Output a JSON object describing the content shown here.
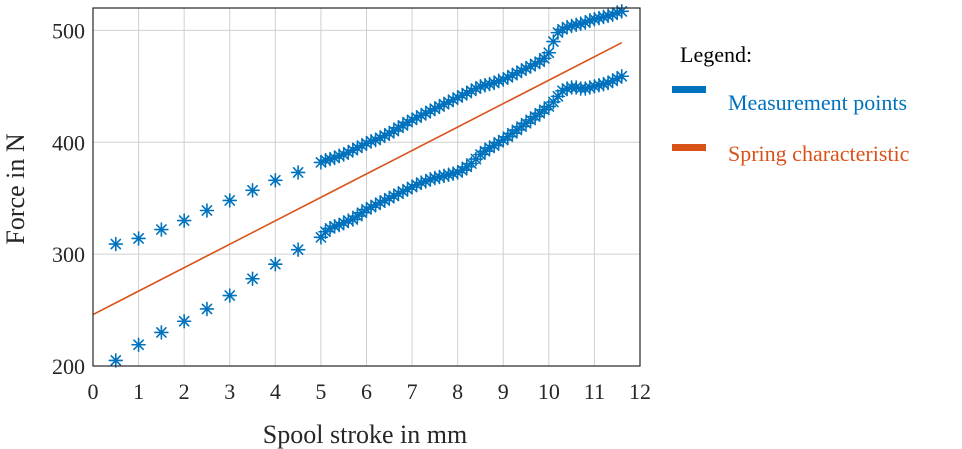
{
  "chart_data": {
    "type": "scatter",
    "xlabel": "Spool stroke in mm",
    "ylabel": "Force in N",
    "xlim": [
      0,
      12
    ],
    "ylim": [
      200,
      520
    ],
    "xticks": [
      0,
      1,
      2,
      3,
      4,
      5,
      6,
      7,
      8,
      9,
      10,
      11,
      12
    ],
    "yticks": [
      200,
      300,
      400,
      500
    ],
    "grid": true,
    "legend": {
      "title": "Legend:",
      "placement": "right-outside",
      "entries": [
        {
          "label": "Measurement points",
          "color": "#0072BD"
        },
        {
          "label": "Spring characteristic",
          "color": "#D95319"
        }
      ]
    },
    "series": [
      {
        "kind": "points",
        "color": "#0072BD",
        "marker": "asterisk",
        "upper_x": [
          0.5,
          1.0,
          1.5,
          2.0,
          2.5,
          3.0,
          3.5,
          4.0,
          4.5,
          5.0,
          5.1,
          5.2,
          5.3,
          5.4,
          5.5,
          5.6,
          5.7,
          5.8,
          5.9,
          6.0,
          6.1,
          6.2,
          6.3,
          6.4,
          6.5,
          6.6,
          6.7,
          6.8,
          6.9,
          7.0,
          7.1,
          7.2,
          7.3,
          7.4,
          7.5,
          7.6,
          7.7,
          7.8,
          7.9,
          8.0,
          8.1,
          8.2,
          8.3,
          8.4,
          8.5,
          8.6,
          8.7,
          8.8,
          8.9,
          9.0,
          9.1,
          9.2,
          9.3,
          9.4,
          9.5,
          9.6,
          9.7,
          9.8,
          9.9,
          10.0,
          10.1,
          10.2,
          10.3,
          10.4,
          10.5,
          10.6,
          10.7,
          10.8,
          10.9,
          11.0,
          11.1,
          11.2,
          11.3,
          11.4,
          11.5,
          11.6
        ],
        "upper_y": [
          309,
          314,
          322,
          330,
          339,
          348,
          357,
          366,
          373,
          382,
          384,
          385,
          386,
          388,
          389,
          391,
          393,
          395,
          397,
          399,
          401,
          402,
          404,
          406,
          408,
          410,
          413,
          415,
          418,
          420,
          422,
          424,
          426,
          428,
          430,
          432,
          434,
          436,
          438,
          440,
          442,
          444,
          446,
          448,
          450,
          451,
          452,
          453,
          455,
          456,
          458,
          460,
          462,
          464,
          466,
          468,
          470,
          472,
          475,
          480,
          490,
          498,
          501,
          503,
          504,
          505,
          506,
          507,
          509,
          510,
          511,
          512,
          513,
          514,
          516,
          517
        ],
        "lower_x": [
          0.5,
          1.0,
          1.5,
          2.0,
          2.5,
          3.0,
          3.5,
          4.0,
          4.5,
          5.0,
          5.1,
          5.2,
          5.3,
          5.4,
          5.5,
          5.6,
          5.7,
          5.8,
          5.9,
          6.0,
          6.1,
          6.2,
          6.3,
          6.4,
          6.5,
          6.6,
          6.7,
          6.8,
          6.9,
          7.0,
          7.1,
          7.2,
          7.3,
          7.4,
          7.5,
          7.6,
          7.7,
          7.8,
          7.9,
          8.0,
          8.1,
          8.2,
          8.3,
          8.4,
          8.5,
          8.6,
          8.7,
          8.8,
          8.9,
          9.0,
          9.1,
          9.2,
          9.3,
          9.4,
          9.5,
          9.6,
          9.7,
          9.8,
          9.9,
          10.0,
          10.1,
          10.2,
          10.3,
          10.4,
          10.5,
          10.6,
          10.7,
          10.8,
          10.9,
          11.0,
          11.1,
          11.2,
          11.3,
          11.4,
          11.5,
          11.6
        ],
        "lower_y": [
          205,
          219,
          230,
          240,
          251,
          263,
          278,
          291,
          304,
          315,
          320,
          323,
          325,
          326,
          328,
          330,
          331,
          334,
          337,
          340,
          342,
          344,
          346,
          348,
          350,
          352,
          354,
          356,
          358,
          360,
          362,
          364,
          365,
          367,
          368,
          369,
          370,
          371,
          372,
          373,
          375,
          378,
          381,
          385,
          389,
          392,
          395,
          397,
          400,
          402,
          405,
          408,
          411,
          414,
          417,
          420,
          423,
          426,
          429,
          432,
          436,
          441,
          446,
          448,
          449,
          449,
          448,
          448,
          449,
          450,
          451,
          452,
          453,
          455,
          457,
          459
        ]
      },
      {
        "kind": "line",
        "color": "#D95319",
        "x": [
          0,
          11.6
        ],
        "y": [
          246,
          489
        ]
      }
    ]
  }
}
